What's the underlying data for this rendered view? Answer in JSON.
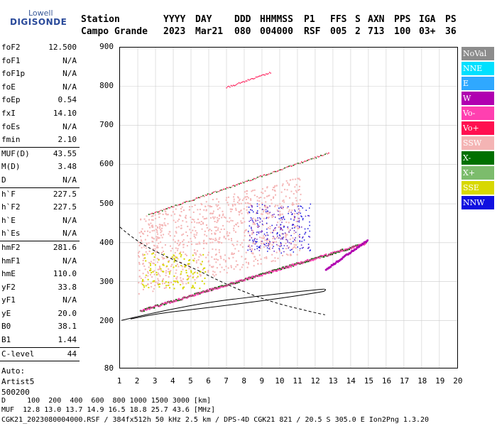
{
  "logo": {
    "top": "Lowell",
    "bottom": "DIGISONDE"
  },
  "header": {
    "labels": [
      "Station",
      "YYYY",
      "DAY",
      "DDD",
      "HHMMSS",
      "P1",
      "FFS",
      "S",
      "AXN",
      "PPS",
      "IGA",
      "PS"
    ],
    "values": [
      "Campo Grande",
      "2023",
      "Mar21",
      "080",
      "004000",
      "RSF",
      "005",
      "2",
      "713",
      "100",
      "03+",
      "36"
    ]
  },
  "params": {
    "group1": [
      {
        "name": "foF2",
        "value": "12.500"
      },
      {
        "name": "foF1",
        "value": "N/A"
      },
      {
        "name": "foF1p",
        "value": "N/A"
      },
      {
        "name": "foE",
        "value": "N/A"
      },
      {
        "name": "foEp",
        "value": "0.54"
      },
      {
        "name": "fxI",
        "value": "14.10"
      },
      {
        "name": "foEs",
        "value": "N/A"
      },
      {
        "name": "fmin",
        "value": "2.10"
      }
    ],
    "group2": [
      {
        "name": "MUF(D)",
        "value": "43.55"
      },
      {
        "name": "M(D)",
        "value": "3.48"
      },
      {
        "name": "D",
        "value": "N/A"
      }
    ],
    "group3": [
      {
        "name": "h`F",
        "value": "227.5"
      },
      {
        "name": "h`F2",
        "value": "227.5"
      },
      {
        "name": "h`E",
        "value": "N/A"
      },
      {
        "name": "h`Es",
        "value": "N/A"
      }
    ],
    "group4": [
      {
        "name": "hmF2",
        "value": "281.6"
      },
      {
        "name": "hmF1",
        "value": "N/A"
      },
      {
        "name": "hmE",
        "value": "110.0"
      },
      {
        "name": "yF2",
        "value": "33.8"
      },
      {
        "name": "yF1",
        "value": "N/A"
      },
      {
        "name": "yE",
        "value": "20.0"
      },
      {
        "name": "B0",
        "value": "38.1"
      },
      {
        "name": "B1",
        "value": "1.44"
      }
    ],
    "clevel": {
      "name": "C-level",
      "value": "44"
    },
    "auto": [
      "Auto:",
      "Artist5",
      "500200"
    ]
  },
  "axes": {
    "y_ticks": [
      "900",
      "800",
      "700",
      "600",
      "500",
      "400",
      "300",
      "200",
      "80"
    ],
    "x_ticks": [
      "1",
      "2",
      "3",
      "4",
      "5",
      "6",
      "7",
      "8",
      "9",
      "10",
      "11",
      "12",
      "13",
      "14",
      "15",
      "16",
      "17",
      "18",
      "19",
      "20"
    ]
  },
  "legend": [
    {
      "label": "NoVal",
      "color": "#8c8c8c"
    },
    {
      "label": "NNE",
      "color": "#00e0ff"
    },
    {
      "label": "E",
      "color": "#2fa8ff"
    },
    {
      "label": "W",
      "color": "#b000b0"
    },
    {
      "label": "Vo-",
      "color": "#ff40b0"
    },
    {
      "label": "Vo+",
      "color": "#ff1050"
    },
    {
      "label": "SSW",
      "color": "#f4b4b4"
    },
    {
      "label": "X-",
      "color": "#007000"
    },
    {
      "label": "X+",
      "color": "#7cbc6c"
    },
    {
      "label": "SSE",
      "color": "#d8d800"
    },
    {
      "label": "NNW",
      "color": "#1010e0"
    }
  ],
  "footer": {
    "line1": "D     100  200  400  600  800 1000 1500 3000 [km]",
    "line2": "MUF  12.8 13.0 13.7 14.9 16.5 18.8 25.7 43.6 [MHz]",
    "line3": "CGK21_2023080004000.RSF / 384fx512h 50 kHz 2.5 km / DPS-4D CGK21 821 / 20.5 S 305.0 E Ion2Png 1.3.20"
  }
}
